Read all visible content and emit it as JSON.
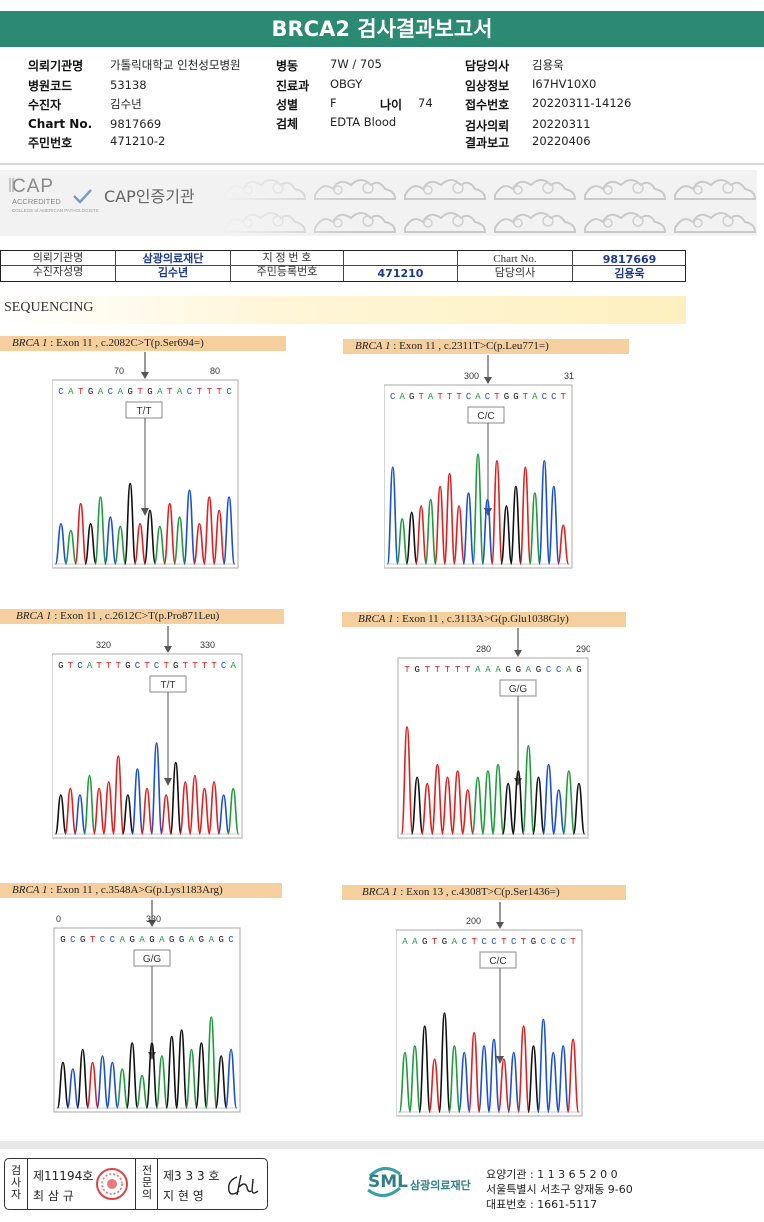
{
  "title": "BRCA2 검사결과보고서",
  "header": {
    "col1": [
      {
        "label": "의뢰기관명",
        "value": "가톨릭대학교 인천성모병원"
      },
      {
        "label": "병원코드",
        "value": "53138"
      },
      {
        "label": "수진자",
        "value": "김수년"
      },
      {
        "label": "Chart No.",
        "value": "9817669"
      },
      {
        "label": "주민번호",
        "value": "471210-2"
      }
    ],
    "col2": [
      {
        "label": "병동",
        "value": "7W / 705"
      },
      {
        "label": "진료과",
        "value": "OBGY"
      },
      {
        "label": "성별",
        "value": "F"
      },
      {
        "label": "검체",
        "value": "EDTA Blood"
      }
    ],
    "age_label": "나이",
    "age_value": "74",
    "col3": [
      {
        "label": "담당의사",
        "value": "김용욱"
      },
      {
        "label": "임상정보",
        "value": "I67HV10X0"
      },
      {
        "label": "접수번호",
        "value": "20220311-14126"
      },
      {
        "label": "검사의뢰",
        "value": "20220311"
      },
      {
        "label": "결과보고",
        "value": "20220406"
      }
    ]
  },
  "cap": {
    "logo_text": "CAP",
    "accredited": "ACCREDITED",
    "college": "COLLEGE of AMERICAN PATHOLOGISTS",
    "title": "CAP인증기관"
  },
  "patient_table": {
    "r1": {
      "l1": "의뢰기관명",
      "v1": "삼광의료재단",
      "l2": "지 정 번 호",
      "v2": "",
      "l3": "Chart No.",
      "v3": "9817669"
    },
    "r2": {
      "l1": "수진자성명",
      "v1": "김수년",
      "l2": "주민등록번호",
      "v2": "471210",
      "l3": "담당의사",
      "v3": "김용욱"
    }
  },
  "sequencing_label": "SEQUENCING",
  "variants": [
    {
      "gene": "BRCA 1",
      "text": " : Exon 11 , c.2082C>T(p.Ser694=)",
      "call": "T/T",
      "seq": "CATGACAGTGATACTTTC",
      "tick1": "70",
      "tick2": "80"
    },
    {
      "gene": "BRCA 1",
      "text": " : Exon 11 , c.2311T>C(p.Leu771=)",
      "call": "C/C",
      "seq": "CAGTATTTCACTGGTACCT",
      "tick1": "300",
      "tick2": "31"
    },
    {
      "gene": "BRCA 1",
      "text": " : Exon 11 , c.2612C>T(p.Pro871Leu)",
      "call": "T/T",
      "seq": "GTCATTTGCTCTGTTTTCA",
      "tick1": "320",
      "tick2": "330"
    },
    {
      "gene": "BRCA 1",
      "text": " : Exon 11 , c.3113A>G(p.Glu1038Gly)",
      "call": "G/G",
      "seq": "TGTTTTTAAAGGAGCCAG",
      "tick1": "280",
      "tick2": "290"
    },
    {
      "gene": "BRCA 1",
      "text": " : Exon 11 , c.3548A>G(p.Lys1183Arg)",
      "call": "G/G",
      "seq": "GCGTCCAGAGAGGAGAGC",
      "tick1": "0",
      "tick2": "330"
    },
    {
      "gene": "BRCA 1",
      "text": " : Exon 13 , c.4308T>C(p.Ser1436=)",
      "call": "C/C",
      "seq": "AAGTGACTCCTCTGCCCT",
      "tick1": "200",
      "tick2": ""
    }
  ],
  "colors": {
    "A": "#1f9a3c",
    "C": "#1a4fd6",
    "G": "#111111",
    "T": "#e02020",
    "title_bg": "#2d8a72",
    "label_bg": "#f6cf9e"
  },
  "signature": {
    "role1": "검사자",
    "no1": "제11194호",
    "name1": "최 삼 규",
    "role2": "전문의",
    "no2": "제3 3 3 호",
    "name2": "지 현 영"
  },
  "lab": {
    "logo": "SML",
    "name": "삼광의료재단",
    "line1": "요양기관 : 1 1 3 6 5 2 0 0",
    "line2": "서울특별시 서초구 양재동 9-60",
    "line3": "대표번호 : 1661-5117"
  }
}
